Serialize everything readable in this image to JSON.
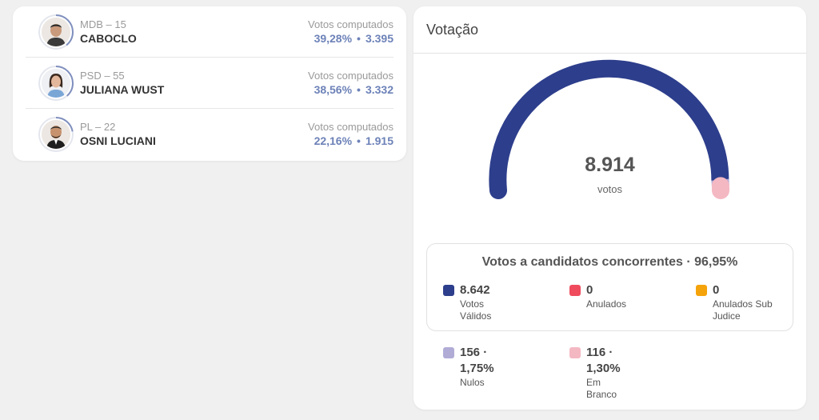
{
  "candidates": [
    {
      "party": "MDB – 15",
      "name": "CABOCLO",
      "votes_label": "Votos computados",
      "percent": "39,28%",
      "separator": "•",
      "votes": "3.395",
      "share": 0.3928,
      "ring_color": "#7f8fbe"
    },
    {
      "party": "PSD – 55",
      "name": "JULIANA WUST",
      "votes_label": "Votos computados",
      "percent": "38,56%",
      "separator": "•",
      "votes": "3.332",
      "share": 0.3856,
      "ring_color": "#7f8fbe"
    },
    {
      "party": "PL – 22",
      "name": "OSNI LUCIANI",
      "votes_label": "Votos computados",
      "percent": "22,16%",
      "separator": "•",
      "votes": "1.915",
      "share": 0.2216,
      "ring_color": "#7f8fbe"
    }
  ],
  "votacao": {
    "title": "Votação",
    "total": "8.914",
    "total_unit": "votos",
    "gauge_segments": [
      {
        "name": "valid",
        "value": 8642,
        "color": "#2d3e8c"
      },
      {
        "name": "nulos",
        "value": 156,
        "color": "#b0acd6"
      },
      {
        "name": "branco",
        "value": 116,
        "color": "#f4b8c3"
      }
    ],
    "summary_title": "Votos a candidatos concorrentes · 96,95%",
    "stats": {
      "validos": {
        "value": "8.642",
        "label": "Votos Válidos",
        "color": "#2d3e8c"
      },
      "anulados": {
        "value": "0",
        "label": "Anulados",
        "color": "#ef4b5d"
      },
      "sub_judice": {
        "value": "0",
        "label": "Anulados Sub Judice",
        "color": "#f5a30a"
      },
      "nulos": {
        "value": "156 · 1,75%",
        "label": "Nulos",
        "color": "#b0acd6"
      },
      "branco": {
        "value": "116 · 1,30%",
        "label": "Em Branco",
        "color": "#f4b8c3"
      }
    }
  }
}
